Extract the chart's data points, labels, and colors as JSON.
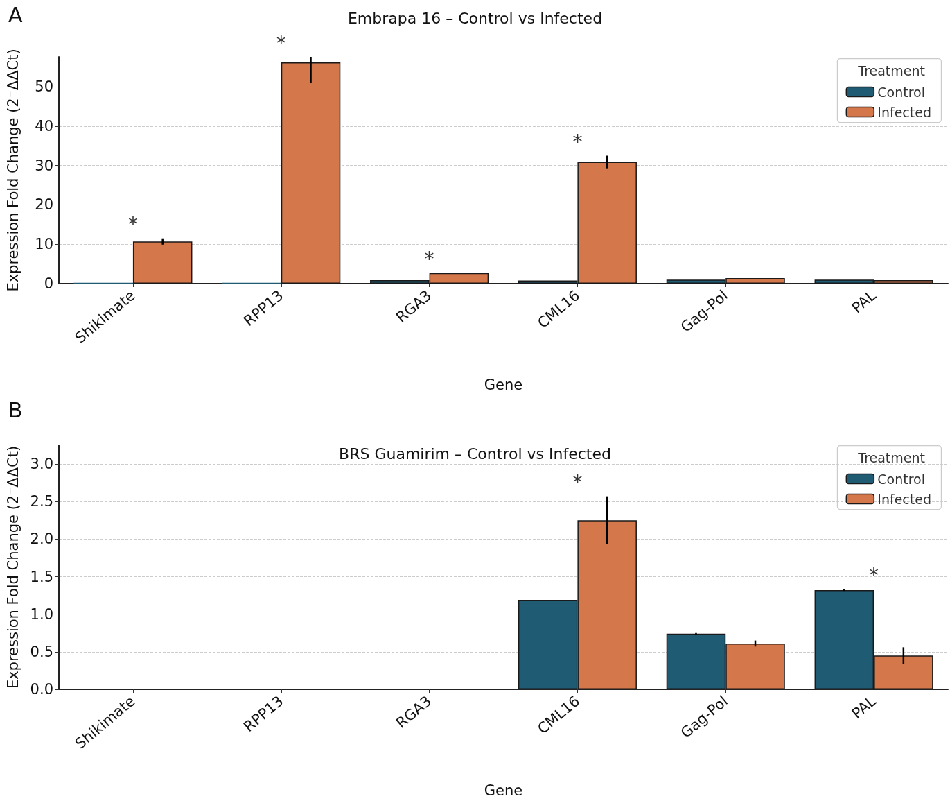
{
  "chart_data": [
    {
      "type": "bar",
      "title": "Embrapa 16 – Control vs Infected",
      "xlabel": "Gene",
      "ylabel": "Expression Fold Change (2⁻ΔΔCt)",
      "legend_title": "Treatment",
      "legend": "top right",
      "grid": "y",
      "categories": [
        "Shikimate",
        "RPP13",
        "RGA3",
        "CML16",
        "Gag-Pol",
        "PAL"
      ],
      "ylim": [
        0,
        57.6
      ],
      "yticks": [
        0,
        10,
        20,
        30,
        40,
        50
      ],
      "series": [
        {
          "name": "Control",
          "color": "#1f5b73",
          "values": [
            0.2,
            0.2,
            0.9,
            0.8,
            1.0,
            1.0
          ]
        },
        {
          "name": "Infected",
          "color": "#d4774a",
          "values": [
            10.7,
            56.2,
            2.7,
            30.9,
            1.4,
            0.9
          ],
          "errors": [
            0.8,
            [
              50.9,
              57.6
            ],
            null,
            1.6,
            null,
            null
          ]
        }
      ],
      "annotations": [
        "A",
        {
          "text": "*",
          "x": "Shikimate",
          "y": 10.7
        },
        {
          "text": "*",
          "x": "RPP13",
          "y": 56.2
        },
        {
          "text": "*",
          "x": "RGA3",
          "y": 2.7
        },
        {
          "text": "*",
          "x": "CML16",
          "y": 30.9
        }
      ]
    },
    {
      "type": "bar",
      "title": "BRS Guamirim – Control vs Infected",
      "xlabel": "Gene",
      "ylabel": "Expression Fold Change (2⁻ΔΔCt)",
      "legend_title": "Treatment",
      "legend": "top right",
      "grid": "y",
      "categories": [
        "Shikimate",
        "RPP13",
        "RGA3",
        "CML16",
        "Gag-Pol",
        "PAL"
      ],
      "ylim": [
        0,
        3.25
      ],
      "yticks": [
        {
          "value": 0,
          "label": "0.0"
        },
        0.5,
        {
          "value": 1,
          "label": "1.0"
        },
        1.5,
        {
          "value": 2,
          "label": "2.0"
        },
        2.5,
        {
          "value": 3,
          "label": "3.0"
        }
      ],
      "series": [
        {
          "name": "Control",
          "color": "#1f5b73",
          "values": [
            null,
            null,
            null,
            1.19,
            0.74,
            1.32
          ],
          "errors": [
            null,
            null,
            null,
            null,
            0.01,
            0.01
          ]
        },
        {
          "name": "Infected",
          "color": "#d4774a",
          "values": [
            null,
            null,
            null,
            2.25,
            0.61,
            0.45
          ],
          "errors": [
            null,
            null,
            null,
            0.32,
            0.04,
            0.11
          ]
        }
      ],
      "annotations": [
        "B",
        {
          "text": "*",
          "x": "CML16",
          "y": 2.25
        },
        {
          "text": "*",
          "x": "PAL",
          "y": 1.32
        }
      ]
    }
  ]
}
